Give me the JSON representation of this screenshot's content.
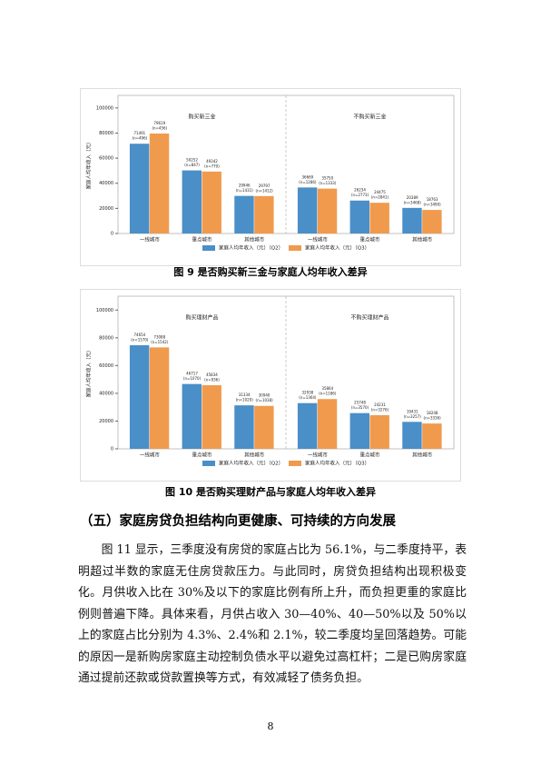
{
  "chart_data": [
    {
      "type": "bar",
      "caption": "图  9  是否购买新三金与家庭人均年收入差异",
      "y_label": "家庭人均年收入（元）",
      "ylim": [
        0,
        110000
      ],
      "yticks": [
        0,
        20000,
        40000,
        60000,
        80000,
        100000
      ],
      "series": [
        {
          "name": "家庭人均年收入（元）（Q2）",
          "color": "#4a8fc7"
        },
        {
          "name": "家庭人均年收入（元）（Q3）",
          "color": "#f09a4e"
        }
      ],
      "panels": [
        {
          "title": "购买新三金",
          "categories": [
            "一线城市",
            "重点城市",
            "其他城市"
          ],
          "values": [
            [
              71491,
              50252,
              29946
            ],
            [
              79619,
              49342,
              29797
            ]
          ],
          "n_labels": [
            [
              "(n=496)",
              "(n=847)",
              "(n=1431)"
            ],
            [
              "(n=456)",
              "(n=770)",
              "(n=1412)"
            ]
          ]
        },
        {
          "title": "不购买新三金",
          "categories": [
            "一线城市",
            "重点城市",
            "其他城市"
          ],
          "values": [
            [
              36669,
              26234,
              20389
            ],
            [
              35750,
              24475,
              18763
            ]
          ],
          "n_labels": [
            [
              "(n=1286)",
              "(n=2773)",
              "(n=3468)"
            ],
            [
              "(n=1333)",
              "(n=2841)",
              "(n=3490)"
            ]
          ]
        }
      ]
    },
    {
      "type": "bar",
      "caption": "图  10  是否购买理财产品与家庭人均年收入差异",
      "y_label": "家庭人均年收入（元）",
      "ylim": [
        0,
        110000
      ],
      "yticks": [
        0,
        20000,
        40000,
        60000,
        80000,
        100000
      ],
      "series": [
        {
          "name": "家庭人均年收入（元）（Q2）",
          "color": "#4a8fc7"
        },
        {
          "name": "家庭人均年收入（元）（Q3）",
          "color": "#f09a4e"
        }
      ],
      "panels": [
        {
          "title": "购买理财产品",
          "categories": [
            "一线城市",
            "重点城市",
            "其他城市"
          ],
          "values": [
            [
              74654,
              46717,
              31334
            ],
            [
              73088,
              45834,
              30940
            ]
          ],
          "n_labels": [
            [
              "(n=1570)",
              "(n=1070)",
              "(n=1020)"
            ],
            [
              "(n=1542)",
              "(n=936)",
              "(n=1038)"
            ]
          ]
        },
        {
          "title": "不购买理财产品",
          "categories": [
            "一线城市",
            "重点城市",
            "其他城市"
          ],
          "values": [
            [
              32938,
              25748,
              19431
            ],
            [
              35864,
              24231,
              18248
            ]
          ],
          "n_labels": [
            [
              "(n=1364)",
              "(n=3570)",
              "(n=3257)"
            ],
            [
              "(n=1186)",
              "(n=3276)",
              "(n=3336)"
            ]
          ]
        }
      ]
    }
  ],
  "section_heading": "（五）家庭房贷负担结构向更健康、可持续的方向发展",
  "paragraph": "图 11 显示，三季度没有房贷的家庭占比为 56.1%，与二季度持平，表明超过半数的家庭无住房贷款压力。与此同时，房贷负担结构出现积极变化。月供收入比在 30%及以下的家庭比例有所上升，而负担更重的家庭比例则普遍下降。具体来看，月供占收入 30—40%、40—50%以及 50%以上的家庭占比分别为 4.3%、2.4%和 2.1%，较二季度均呈回落趋势。可能的原因一是新购房家庭主动控制负债水平以避免过高杠杆；二是已购房家庭通过提前还款或贷款置换等方式，有效减轻了债务负担。",
  "page_number": "8"
}
